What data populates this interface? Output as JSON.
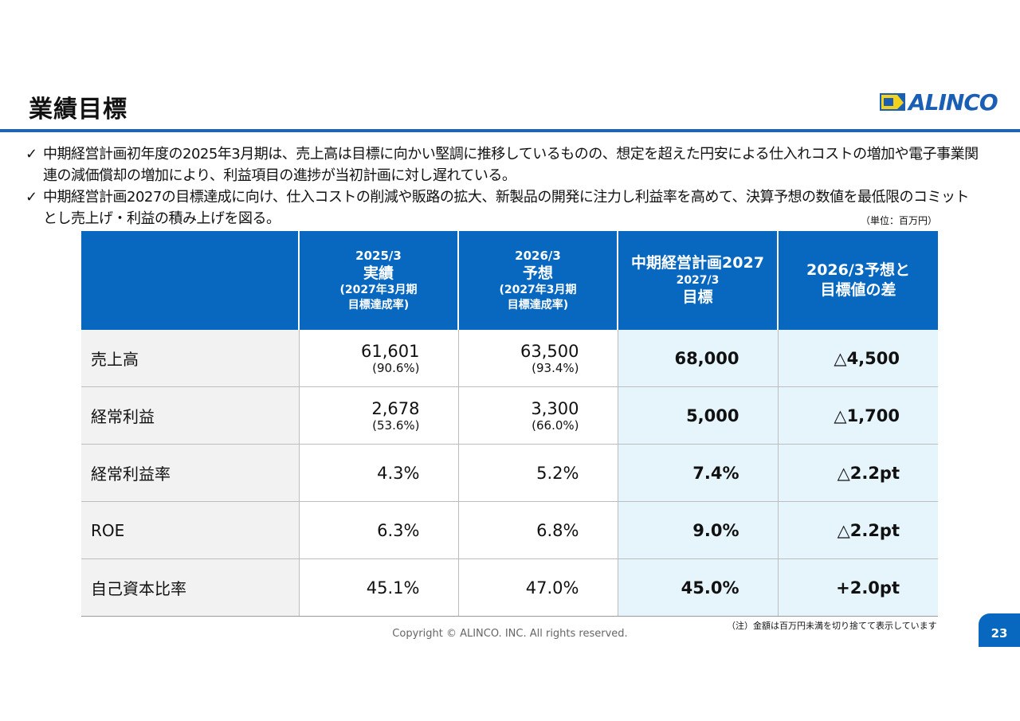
{
  "title": "業績目標",
  "logo": {
    "text": "ALINCO",
    "mark_text": "ALINCO"
  },
  "bullets": [
    {
      "icon": "check-icon",
      "text": "中期経営計画初年度の2025年3月期は、売上高は目標に向かい堅調に推移しているものの、想定を超えた円安による仕入れコストの増加や電子事業関連の減価償却の増加により、利益項目の進捗が当初計画に対し遅れている。"
    },
    {
      "icon": "check-icon",
      "text": "中期経営計画2027の目標達成に向け、仕入コストの削減や販路の拡大、新製品の開発に注力し利益率を高めて、決算予想の数値を最低限のコミットとし売上げ・利益の積み上げを図る。"
    }
  ],
  "unit_note": "（単位：百万円）",
  "table": {
    "headers": {
      "actual": {
        "period": "2025/3",
        "main": "実績",
        "sub1": "(2027年3月期",
        "sub2": "目標達成率)"
      },
      "forecast": {
        "period": "2026/3",
        "main": "予想",
        "sub1": "(2027年3月期",
        "sub2": "目標達成率)"
      },
      "target": {
        "line1": "中期経営計画2027",
        "line2": "2027/3",
        "line3": "目標"
      },
      "diff": {
        "line1": "2026/3予想と",
        "line2": "目標値の差"
      }
    },
    "rows": [
      {
        "label": "売上高",
        "actual": "61,601",
        "actual_rate": "(90.6%)",
        "forecast": "63,500",
        "forecast_rate": "(93.4%)",
        "target": "68,000",
        "diff": "△4,500"
      },
      {
        "label": "経常利益",
        "actual": "2,678",
        "actual_rate": "(53.6%)",
        "forecast": "3,300",
        "forecast_rate": "(66.0%)",
        "target": "5,000",
        "diff": "△1,700"
      },
      {
        "label": "経常利益率",
        "actual": "4.3%",
        "actual_rate": "",
        "forecast": "5.2%",
        "forecast_rate": "",
        "target": "7.4%",
        "diff": "△2.2pt"
      },
      {
        "label": "ROE",
        "actual": "6.3%",
        "actual_rate": "",
        "forecast": "6.8%",
        "forecast_rate": "",
        "target": "9.0%",
        "diff": "△2.2pt"
      },
      {
        "label": "自己資本比率",
        "actual": "45.1%",
        "actual_rate": "",
        "forecast": "47.0%",
        "forecast_rate": "",
        "target": "45.0%",
        "diff": "+2.0pt"
      }
    ]
  },
  "footnote": "（注）金額は百万円未満を切り捨てて表示しています",
  "copyright": "Copyright © ALINCO. INC. All rights reserved.",
  "page_number": "23",
  "colors": {
    "accent": "#0868c0",
    "rule": "#1f63b5",
    "highlight": "#e6f5fc",
    "label_bg": "#f2f2f2"
  }
}
